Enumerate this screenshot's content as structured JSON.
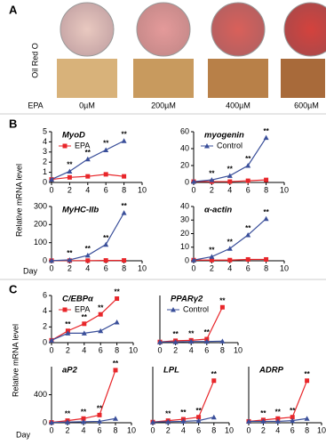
{
  "panel_a": {
    "label": "A",
    "stain": "Oil Red O",
    "treatment": "EPA",
    "doses": [
      "0µM",
      "200µM",
      "400µM",
      "600µM"
    ]
  },
  "panel_b": {
    "label": "B",
    "ylabel": "Relative mRNA level",
    "xlabel": "Day"
  },
  "panel_c": {
    "label": "C",
    "ylabel": "Relative mRNA level",
    "xlabel": "Day"
  },
  "chart_data": [
    {
      "type": "line",
      "title": "MyoD",
      "x": [
        0,
        2,
        4,
        6,
        8
      ],
      "xlim": [
        0,
        10
      ],
      "xticks": [
        0,
        2,
        4,
        6,
        8,
        10
      ],
      "ylim": [
        0,
        5
      ],
      "yticks": [
        0,
        1,
        2,
        3,
        4,
        5
      ],
      "legend": [
        0
      ],
      "series": [
        {
          "name": "EPA",
          "color": "#e8262a",
          "marker": "square",
          "values": [
            0.3,
            0.5,
            0.6,
            0.8,
            0.6
          ]
        },
        {
          "name": "Control",
          "color": "#3a4f9a",
          "marker": "triangle",
          "values": [
            0.3,
            1.1,
            2.3,
            3.2,
            4.1
          ],
          "point_labels": [
            null,
            "**",
            "**",
            "**",
            "**"
          ]
        }
      ]
    },
    {
      "type": "line",
      "title": "myogenin",
      "x": [
        0,
        2,
        4,
        6,
        8
      ],
      "xlim": [
        0,
        10
      ],
      "xticks": [
        0,
        2,
        4,
        6,
        8,
        10
      ],
      "ylim": [
        0,
        60
      ],
      "yticks": [
        0,
        20,
        40,
        60
      ],
      "legend": [
        1
      ],
      "series": [
        {
          "name": "EPA",
          "color": "#e8262a",
          "marker": "square",
          "values": [
            1,
            1,
            1,
            2,
            3
          ]
        },
        {
          "name": "Control",
          "color": "#3a4f9a",
          "marker": "triangle",
          "values": [
            1,
            3,
            8,
            20,
            53
          ],
          "point_labels": [
            null,
            "**",
            "**",
            "**",
            "**"
          ]
        }
      ]
    },
    {
      "type": "line",
      "title": "MyHC-IIb",
      "x": [
        0,
        2,
        4,
        6,
        8
      ],
      "xlim": [
        0,
        10
      ],
      "xticks": [
        0,
        2,
        4,
        6,
        8,
        10
      ],
      "ylim": [
        0,
        300
      ],
      "yticks": [
        0,
        100,
        200,
        300
      ],
      "series": [
        {
          "name": "EPA",
          "color": "#e8262a",
          "marker": "square",
          "values": [
            1,
            1,
            1,
            2,
            2
          ]
        },
        {
          "name": "Control",
          "color": "#3a4f9a",
          "marker": "triangle",
          "values": [
            1,
            5,
            30,
            90,
            265
          ],
          "point_labels": [
            null,
            "**",
            "**",
            "**",
            "**"
          ]
        }
      ]
    },
    {
      "type": "line",
      "title": "α-actin",
      "x": [
        0,
        2,
        4,
        6,
        8
      ],
      "xlim": [
        0,
        10
      ],
      "xticks": [
        0,
        2,
        4,
        6,
        8,
        10
      ],
      "ylim": [
        0,
        40
      ],
      "yticks": [
        0,
        10,
        20,
        30,
        40
      ],
      "series": [
        {
          "name": "EPA",
          "color": "#e8262a",
          "marker": "square",
          "values": [
            0.5,
            0.5,
            0.5,
            1,
            1
          ]
        },
        {
          "name": "Control",
          "color": "#3a4f9a",
          "marker": "triangle",
          "values": [
            0.5,
            3,
            9,
            19,
            31
          ],
          "point_labels": [
            null,
            "**",
            "**",
            "**",
            "**"
          ]
        }
      ]
    },
    {
      "type": "line",
      "title": "C/EBPα",
      "x": [
        0,
        2,
        4,
        6,
        8
      ],
      "xlim": [
        0,
        10
      ],
      "xticks": [
        0,
        2,
        4,
        6,
        8,
        10
      ],
      "ylim": [
        0,
        6
      ],
      "yticks": [
        0,
        2,
        4,
        6
      ],
      "legend": [
        0
      ],
      "series": [
        {
          "name": "EPA",
          "color": "#e8262a",
          "marker": "square",
          "values": [
            0.3,
            1.5,
            2.4,
            3.6,
            5.6
          ],
          "point_labels": [
            null,
            "**",
            "**",
            "**",
            "**"
          ]
        },
        {
          "name": "Control",
          "color": "#3a4f9a",
          "marker": "triangle",
          "values": [
            0.3,
            1.2,
            1.2,
            1.5,
            2.6
          ]
        }
      ]
    },
    {
      "type": "line",
      "title": "PPARγ2",
      "x": [
        0,
        2,
        4,
        6,
        8
      ],
      "xlim": [
        0,
        10
      ],
      "xticks": [
        0,
        2,
        4,
        6,
        8,
        10
      ],
      "ylim": [
        0,
        20
      ],
      "yticks": [],
      "legend": [
        1
      ],
      "series": [
        {
          "name": "EPA",
          "color": "#e8262a",
          "marker": "square",
          "values": [
            0.3,
            0.8,
            1,
            1.5,
            15
          ],
          "point_labels": [
            null,
            "**",
            "**",
            "**",
            "**"
          ]
        },
        {
          "name": "Control",
          "color": "#3a4f9a",
          "marker": "triangle",
          "values": [
            0.3,
            0.3,
            0.5,
            0.5,
            0.6
          ]
        }
      ]
    },
    {
      "type": "line",
      "title": "aP2",
      "x": [
        0,
        2,
        4,
        6,
        8
      ],
      "xlim": [
        0,
        10
      ],
      "xticks": [
        0,
        2,
        4,
        6,
        8,
        10
      ],
      "ylim": [
        0,
        800
      ],
      "yticks": [
        0,
        400
      ],
      "series": [
        {
          "name": "EPA",
          "color": "#e8262a",
          "marker": "square",
          "values": [
            5,
            30,
            60,
            110,
            750
          ],
          "point_labels": [
            null,
            "**",
            "**",
            "**",
            "**"
          ]
        },
        {
          "name": "Control",
          "color": "#3a4f9a",
          "marker": "triangle",
          "values": [
            5,
            10,
            15,
            20,
            60
          ]
        }
      ]
    },
    {
      "type": "line",
      "title": "LPL",
      "x": [
        0,
        2,
        4,
        6,
        8
      ],
      "xlim": [
        0,
        10
      ],
      "xticks": [
        0,
        2,
        4,
        6,
        8,
        10
      ],
      "ylim": [
        0,
        80
      ],
      "yticks": [],
      "series": [
        {
          "name": "EPA",
          "color": "#e8262a",
          "marker": "square",
          "values": [
            1,
            3,
            5,
            8,
            60
          ],
          "point_labels": [
            null,
            "**",
            "**",
            "**",
            "**"
          ]
        },
        {
          "name": "Control",
          "color": "#3a4f9a",
          "marker": "triangle",
          "values": [
            1,
            1.5,
            2,
            3,
            8
          ]
        }
      ]
    },
    {
      "type": "line",
      "title": "ADRP",
      "x": [
        0,
        2,
        4,
        6,
        8
      ],
      "xlim": [
        0,
        10
      ],
      "xticks": [
        0,
        2,
        4,
        6,
        8,
        10
      ],
      "ylim": [
        0,
        40
      ],
      "yticks": [],
      "series": [
        {
          "name": "EPA",
          "color": "#e8262a",
          "marker": "square",
          "values": [
            1,
            2,
            3,
            4,
            30
          ],
          "point_labels": [
            null,
            "**",
            "**",
            "**",
            "**"
          ]
        },
        {
          "name": "Control",
          "color": "#3a4f9a",
          "marker": "triangle",
          "values": [
            1,
            1,
            1,
            1.5,
            3
          ]
        }
      ]
    }
  ]
}
